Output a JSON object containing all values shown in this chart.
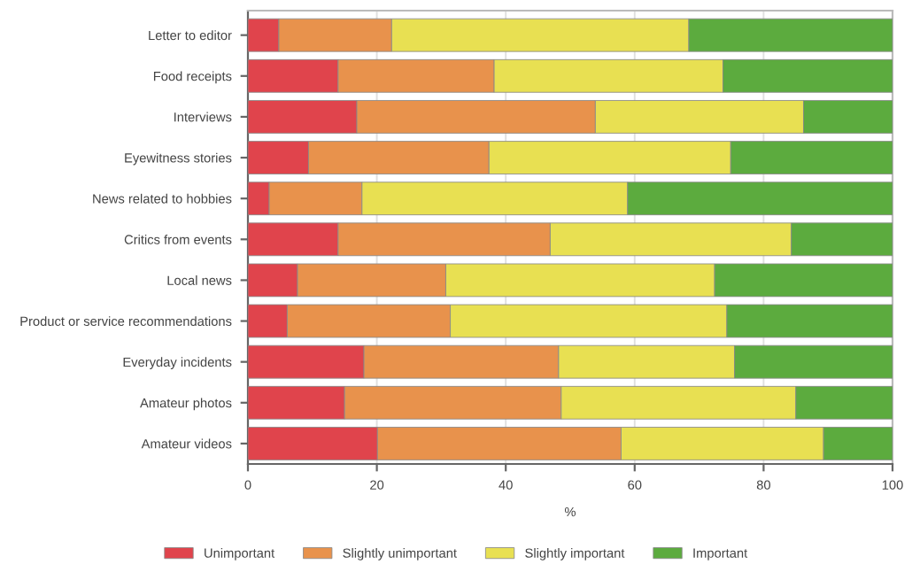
{
  "chart_data": {
    "type": "bar",
    "orientation": "horizontal",
    "stacked": true,
    "xlabel": "%",
    "categories": [
      "Letter to editor",
      "Food receipts",
      "Interviews",
      "Eyewitness stories",
      "News related to hobbies",
      "Critics from events",
      "Local news",
      "Product or service recommendations",
      "Everyday incidents",
      "Amateur photos",
      "Amateur videos"
    ],
    "series": [
      {
        "name": "Unimportant",
        "color": "#e0444c",
        "values": [
          4.8,
          14,
          16.9,
          9.4,
          3.3,
          14,
          7.7,
          6.1,
          18,
          15,
          20.1
        ]
      },
      {
        "name": "Slightly unimportant",
        "color": "#e8924c",
        "values": [
          17.5,
          24.2,
          37,
          28,
          14.4,
          32.9,
          23,
          25.3,
          30.2,
          33.6,
          37.8
        ]
      },
      {
        "name": "Slightly important",
        "color": "#e8e052",
        "values": [
          46.1,
          35.5,
          32.3,
          37.5,
          41.2,
          37.4,
          41.7,
          42.9,
          27.3,
          36.4,
          31.4
        ]
      },
      {
        "name": "Important",
        "color": "#5cab3e",
        "values": [
          31.6,
          26.3,
          13.8,
          25.1,
          41.1,
          15.7,
          27.6,
          25.7,
          24.5,
          15,
          10.7
        ]
      }
    ],
    "xlim": [
      0,
      100
    ],
    "xticks": [
      0,
      20,
      40,
      60,
      80,
      100
    ],
    "grid": "x",
    "legend": "bottom"
  }
}
